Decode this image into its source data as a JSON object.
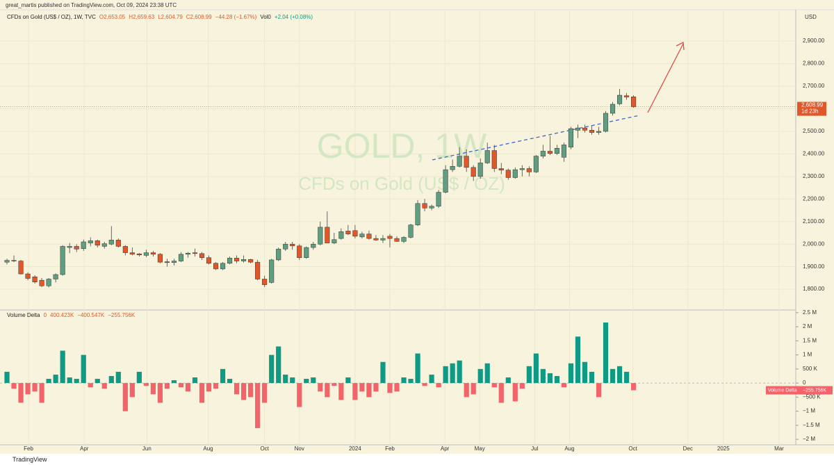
{
  "header": {
    "publisher": "great_martis published on TradingView.com, Oct 09, 2024 23:38 UTC",
    "footer": "TradingView"
  },
  "chart_data": [
    {
      "type": "candlestick",
      "title": "CFDs on Gold (US$ / OZ), 1W, TVC",
      "legend_values": [
        "O2,653.05",
        "H2,659.63",
        "L2,604.79",
        "C2,608.99",
        "−44.28 (−1.67%)",
        "Vol0",
        "+2.04 (+0.08%)"
      ],
      "watermark": [
        "GOLD, 1W",
        "CFDs on Gold (US$ / OZ)"
      ],
      "axis_unit": "USD",
      "last_price_label": "2,608.99",
      "countdown": "1d 23h",
      "up_color": "#5f9e80",
      "down_color": "#e0582a",
      "series": [
        {
          "values": [
            [
              1920,
              1935,
              1910,
              1928
            ],
            [
              1928,
              1950,
              1920,
              1925
            ],
            [
              1925,
              1930,
              1865,
              1868
            ],
            [
              1868,
              1875,
              1840,
              1848
            ],
            [
              1855,
              1862,
              1825,
              1832
            ],
            [
              1840,
              1850,
              1810,
              1815
            ],
            [
              1815,
              1850,
              1808,
              1845
            ],
            [
              1845,
              1870,
              1830,
              1865
            ],
            [
              1865,
              1995,
              1860,
              1990
            ],
            [
              1985,
              2005,
              1960,
              1990
            ],
            [
              1990,
              2000,
              1965,
              1978
            ],
            [
              1980,
              2020,
              1970,
              2010
            ],
            [
              2005,
              2030,
              1990,
              2015
            ],
            [
              2015,
              2020,
              1985,
              1995
            ],
            [
              1990,
              2010,
              1980,
              2002
            ],
            [
              2000,
              2080,
              1995,
              2018
            ],
            [
              2018,
              2025,
              1985,
              1990
            ],
            [
              1990,
              1995,
              1950,
              1962
            ],
            [
              1962,
              1985,
              1950,
              1955
            ],
            [
              1957,
              1960,
              1945,
              1952
            ],
            [
              1950,
              1975,
              1942,
              1962
            ],
            [
              1962,
              1970,
              1945,
              1955
            ],
            [
              1955,
              1960,
              1915,
              1920
            ],
            [
              1922,
              1935,
              1900,
              1918
            ],
            [
              1918,
              1935,
              1905,
              1925
            ],
            [
              1925,
              1965,
              1920,
              1955
            ],
            [
              1955,
              1965,
              1940,
              1960
            ],
            [
              1962,
              1980,
              1945,
              1958
            ],
            [
              1958,
              1965,
              1930,
              1940
            ],
            [
              1940,
              1950,
              1910,
              1915
            ],
            [
              1915,
              1920,
              1885,
              1890
            ],
            [
              1890,
              1920,
              1885,
              1915
            ],
            [
              1915,
              1945,
              1910,
              1938
            ],
            [
              1938,
              1950,
              1915,
              1925
            ],
            [
              1925,
              1950,
              1918,
              1932
            ],
            [
              1932,
              1935,
              1915,
              1920
            ],
            [
              1920,
              1930,
              1840,
              1845
            ],
            [
              1845,
              1860,
              1810,
              1820
            ],
            [
              1830,
              1935,
              1825,
              1930
            ],
            [
              1930,
              1985,
              1925,
              1978
            ],
            [
              1978,
              2010,
              1970,
              2000
            ],
            [
              2000,
              2010,
              1975,
              1992
            ],
            [
              1992,
              2000,
              1930,
              1940
            ],
            [
              1940,
              1990,
              1935,
              1985
            ],
            [
              1985,
              2010,
              1975,
              2000
            ],
            [
              2000,
              2100,
              1995,
              2075
            ],
            [
              2075,
              2145,
              2010,
              2005
            ],
            [
              2005,
              2050,
              2000,
              2020
            ],
            [
              2025,
              2070,
              2020,
              2055
            ],
            [
              2058,
              2085,
              2040,
              2045
            ],
            [
              2060,
              2085,
              2025,
              2035
            ],
            [
              2032,
              2055,
              2025,
              2045
            ],
            [
              2045,
              2060,
              2020,
              2025
            ],
            [
              2025,
              2040,
              2015,
              2018
            ],
            [
              2018,
              2040,
              2005,
              2025
            ],
            [
              2035,
              2045,
              1985,
              2025
            ],
            [
              2025,
              2035,
              2010,
              2012
            ],
            [
              2012,
              2035,
              2005,
              2030
            ],
            [
              2030,
              2090,
              2025,
              2085
            ],
            [
              2085,
              2195,
              2080,
              2180
            ],
            [
              2180,
              2200,
              2145,
              2160
            ],
            [
              2160,
              2175,
              2150,
              2168
            ],
            [
              2168,
              2240,
              2160,
              2230
            ],
            [
              2230,
              2350,
              2225,
              2330
            ],
            [
              2330,
              2375,
              2320,
              2345
            ],
            [
              2345,
              2430,
              2340,
              2390
            ],
            [
              2390,
              2420,
              2320,
              2340
            ],
            [
              2340,
              2350,
              2280,
              2300
            ],
            [
              2300,
              2380,
              2290,
              2360
            ],
            [
              2360,
              2450,
              2355,
              2415
            ],
            [
              2415,
              2440,
              2320,
              2335
            ],
            [
              2335,
              2360,
              2310,
              2328
            ],
            [
              2328,
              2335,
              2285,
              2295
            ],
            [
              2295,
              2340,
              2290,
              2330
            ],
            [
              2330,
              2350,
              2300,
              2335
            ],
            [
              2335,
              2345,
              2300,
              2320
            ],
            [
              2320,
              2395,
              2315,
              2390
            ],
            [
              2390,
              2440,
              2380,
              2412
            ],
            [
              2412,
              2480,
              2395,
              2402
            ],
            [
              2402,
              2440,
              2395,
              2425
            ],
            [
              2385,
              2450,
              2365,
              2440
            ],
            [
              2430,
              2520,
              2420,
              2512
            ],
            [
              2505,
              2530,
              2470,
              2515
            ],
            [
              2515,
              2530,
              2495,
              2505
            ],
            [
              2505,
              2525,
              2485,
              2495
            ],
            [
              2495,
              2520,
              2485,
              2500
            ],
            [
              2500,
              2590,
              2495,
              2580
            ],
            [
              2580,
              2630,
              2570,
              2620
            ],
            [
              2622,
              2688,
              2615,
              2660
            ],
            [
              2658,
              2670,
              2640,
              2652
            ],
            [
              2653.05,
              2659.63,
              2604.79,
              2608.99
            ]
          ]
        }
      ],
      "ylim": [
        1711,
        3036
      ],
      "yticks": [
        {
          "value": 1800,
          "label": "1,800.00"
        },
        {
          "value": 1900,
          "label": "1,900.00"
        },
        {
          "value": 2000,
          "label": "2,000.00"
        },
        {
          "value": 2100,
          "label": "2,100.00"
        },
        {
          "value": 2200,
          "label": "2,200.00"
        },
        {
          "value": 2300,
          "label": "2,300.00"
        },
        {
          "value": 2400,
          "label": "2,400.00"
        },
        {
          "value": 2500,
          "label": "2,500.00"
        },
        {
          "value": 2600,
          "label": "2,600.00"
        },
        {
          "value": 2700,
          "label": "2,700.00"
        },
        {
          "value": 2800,
          "label": "2,800.00"
        },
        {
          "value": 2900,
          "label": "2,900.00"
        }
      ]
    },
    {
      "type": "bar",
      "title": "Volume Delta",
      "legend_values": [
        "0",
        "400.423K",
        "−400.547K",
        "−255.756K"
      ],
      "last_label": "−255.756K",
      "up_color": "#0f9a86",
      "down_color": "#f2636a",
      "series": [
        {
          "name": "Volume Delta",
          "values": [
            400000,
            -200000,
            -700000,
            -400000,
            -300000,
            -700000,
            150000,
            300000,
            1150000,
            200000,
            150000,
            1000000,
            -150000,
            150000,
            -200000,
            250000,
            400000,
            -1000000,
            -500000,
            400000,
            -100000,
            -400000,
            -700000,
            -200000,
            100000,
            -150000,
            -300000,
            200000,
            -700000,
            -300000,
            -200000,
            500000,
            150000,
            -400000,
            -600000,
            -500000,
            -1600000,
            -700000,
            1000000,
            1300000,
            300000,
            200000,
            -850000,
            150000,
            200000,
            -300000,
            -500000,
            -100000,
            -600000,
            200000,
            -600000,
            -300000,
            -500000,
            -300000,
            750000,
            -350000,
            -300000,
            200000,
            150000,
            1050000,
            -100000,
            300000,
            -150000,
            600000,
            700000,
            800000,
            -500000,
            -400000,
            500000,
            700000,
            -150000,
            -700000,
            200000,
            -650000,
            -200000,
            600000,
            1050000,
            500000,
            350000,
            250000,
            -150000,
            700000,
            1650000,
            750000,
            400000,
            -500000,
            2150000,
            500000,
            600000,
            400000,
            -255756
          ]
        }
      ],
      "ylim": [
        -2120000,
        2570000
      ],
      "yticks": [
        {
          "value": 2500000,
          "label": "2.5 M"
        },
        {
          "value": 2000000,
          "label": "2 M"
        },
        {
          "value": 1500000,
          "label": "1.5 M"
        },
        {
          "value": 1000000,
          "label": "1 M"
        },
        {
          "value": 500000,
          "label": "500 K"
        },
        0,
        {
          "value": -500000,
          "label": "−500 K"
        },
        {
          "value": -1000000,
          "label": "−1 M"
        },
        {
          "value": -1500000,
          "label": "−1.5 M"
        },
        {
          "value": -2000000,
          "label": "−2 M"
        }
      ],
      "xlim": [
        -1.0,
        113.3
      ],
      "xticks": [
        {
          "value": 3.1,
          "label": "Feb"
        },
        {
          "value": 11.1,
          "label": "Apr"
        },
        {
          "value": 20.1,
          "label": "Jun"
        },
        {
          "value": 28.9,
          "label": "Aug"
        },
        {
          "value": 37.0,
          "label": "Oct"
        },
        {
          "value": 42.0,
          "label": "Nov"
        },
        {
          "value": 50.0,
          "label": "2024"
        },
        {
          "value": 55.0,
          "label": "Feb"
        },
        {
          "value": 62.9,
          "label": "Apr"
        },
        {
          "value": 67.9,
          "label": "May"
        },
        {
          "value": 75.8,
          "label": "Jul"
        },
        {
          "value": 80.8,
          "label": "Aug"
        },
        {
          "value": 89.9,
          "label": "Oct"
        },
        {
          "value": 97.8,
          "label": "Dec"
        },
        {
          "value": 102.9,
          "label": "2025"
        },
        {
          "value": 110.9,
          "label": "Mar"
        }
      ]
    }
  ]
}
